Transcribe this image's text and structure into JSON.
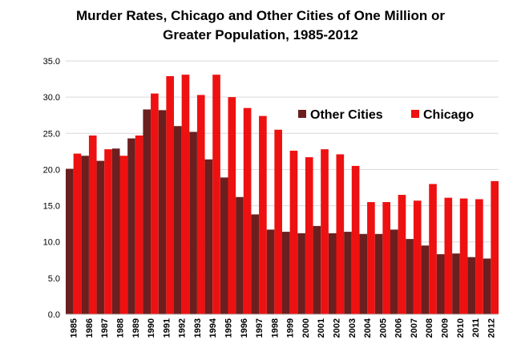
{
  "chart_data": {
    "type": "bar",
    "title_lines": [
      "Murder Rates, Chicago and Other Cities of One Million or",
      "Greater Population, 1985-2012"
    ],
    "xlabel": "",
    "ylabel": "",
    "ylim": [
      0,
      35
    ],
    "y_ticks": [
      "0.0",
      "5.0",
      "10.0",
      "15.0",
      "20.0",
      "25.0",
      "30.0",
      "35.0"
    ],
    "grid": true,
    "legend_position": "upper-right inside plot",
    "categories": [
      "1985",
      "1986",
      "1987",
      "1988",
      "1989",
      "1990",
      "1991",
      "1992",
      "1993",
      "1994",
      "1995",
      "1996",
      "1997",
      "1998",
      "1999",
      "2000",
      "2001",
      "2002",
      "2003",
      "2004",
      "2005",
      "2006",
      "2007",
      "2008",
      "2009",
      "2010",
      "2011",
      "2012"
    ],
    "series": [
      {
        "name": "Other Cities",
        "color": "#6b1f1f",
        "values": [
          20.1,
          21.9,
          21.2,
          22.9,
          24.3,
          28.3,
          28.2,
          26.0,
          25.2,
          21.4,
          18.9,
          16.2,
          13.8,
          11.7,
          11.4,
          11.2,
          12.2,
          11.2,
          11.4,
          11.1,
          11.1,
          11.7,
          10.4,
          9.5,
          8.3,
          8.4,
          7.9,
          7.7
        ]
      },
      {
        "name": "Chicago",
        "color": "#ee1111",
        "values": [
          22.2,
          24.7,
          22.8,
          21.9,
          24.7,
          30.5,
          32.9,
          33.1,
          30.3,
          33.1,
          30.0,
          28.5,
          27.4,
          25.5,
          22.6,
          21.7,
          22.8,
          22.1,
          20.5,
          15.5,
          15.5,
          16.5,
          15.7,
          18.0,
          16.1,
          16.0,
          15.9,
          18.4
        ]
      }
    ]
  }
}
